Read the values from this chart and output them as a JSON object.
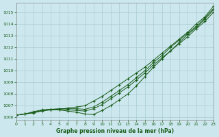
{
  "title": "Graphe pression niveau de la mer (hPa)",
  "background_color": "#cce8ee",
  "grid_color": "#aaccd4",
  "line_color": "#1a5c1a",
  "xlim": [
    0,
    23
  ],
  "ylim": [
    1005.8,
    1015.8
  ],
  "yticks": [
    1006,
    1007,
    1008,
    1009,
    1010,
    1011,
    1012,
    1013,
    1014,
    1015
  ],
  "xticks": [
    0,
    1,
    2,
    3,
    4,
    5,
    6,
    7,
    8,
    9,
    10,
    11,
    12,
    13,
    14,
    15,
    16,
    17,
    18,
    19,
    20,
    21,
    22,
    23
  ],
  "series": [
    [
      1006.2,
      1006.3,
      1006.4,
      1006.6,
      1006.7,
      1006.7,
      1006.8,
      1006.9,
      1007.0,
      1007.4,
      1007.8,
      1008.3,
      1008.8,
      1009.3,
      1009.8,
      1010.3,
      1010.9,
      1011.5,
      1012.1,
      1012.7,
      1013.3,
      1014.0,
      1014.6,
      1015.5
    ],
    [
      1006.2,
      1006.3,
      1006.45,
      1006.6,
      1006.7,
      1006.75,
      1006.75,
      1006.75,
      1006.7,
      1006.9,
      1007.3,
      1007.8,
      1008.3,
      1008.8,
      1009.4,
      1010.0,
      1010.7,
      1011.3,
      1012.0,
      1012.6,
      1013.2,
      1013.8,
      1014.5,
      1015.3
    ],
    [
      1006.2,
      1006.3,
      1006.4,
      1006.55,
      1006.65,
      1006.65,
      1006.65,
      1006.6,
      1006.55,
      1006.75,
      1007.1,
      1007.6,
      1008.1,
      1008.6,
      1009.2,
      1009.8,
      1010.5,
      1011.1,
      1011.7,
      1012.3,
      1012.9,
      1013.6,
      1014.2,
      1015.0
    ],
    [
      1006.2,
      1006.3,
      1006.5,
      1006.65,
      1006.7,
      1006.65,
      1006.55,
      1006.45,
      1006.3,
      1006.25,
      1006.6,
      1007.0,
      1007.5,
      1008.0,
      1008.7,
      1009.5,
      1010.3,
      1011.0,
      1011.7,
      1012.4,
      1013.1,
      1013.7,
      1014.4,
      1015.2
    ]
  ]
}
